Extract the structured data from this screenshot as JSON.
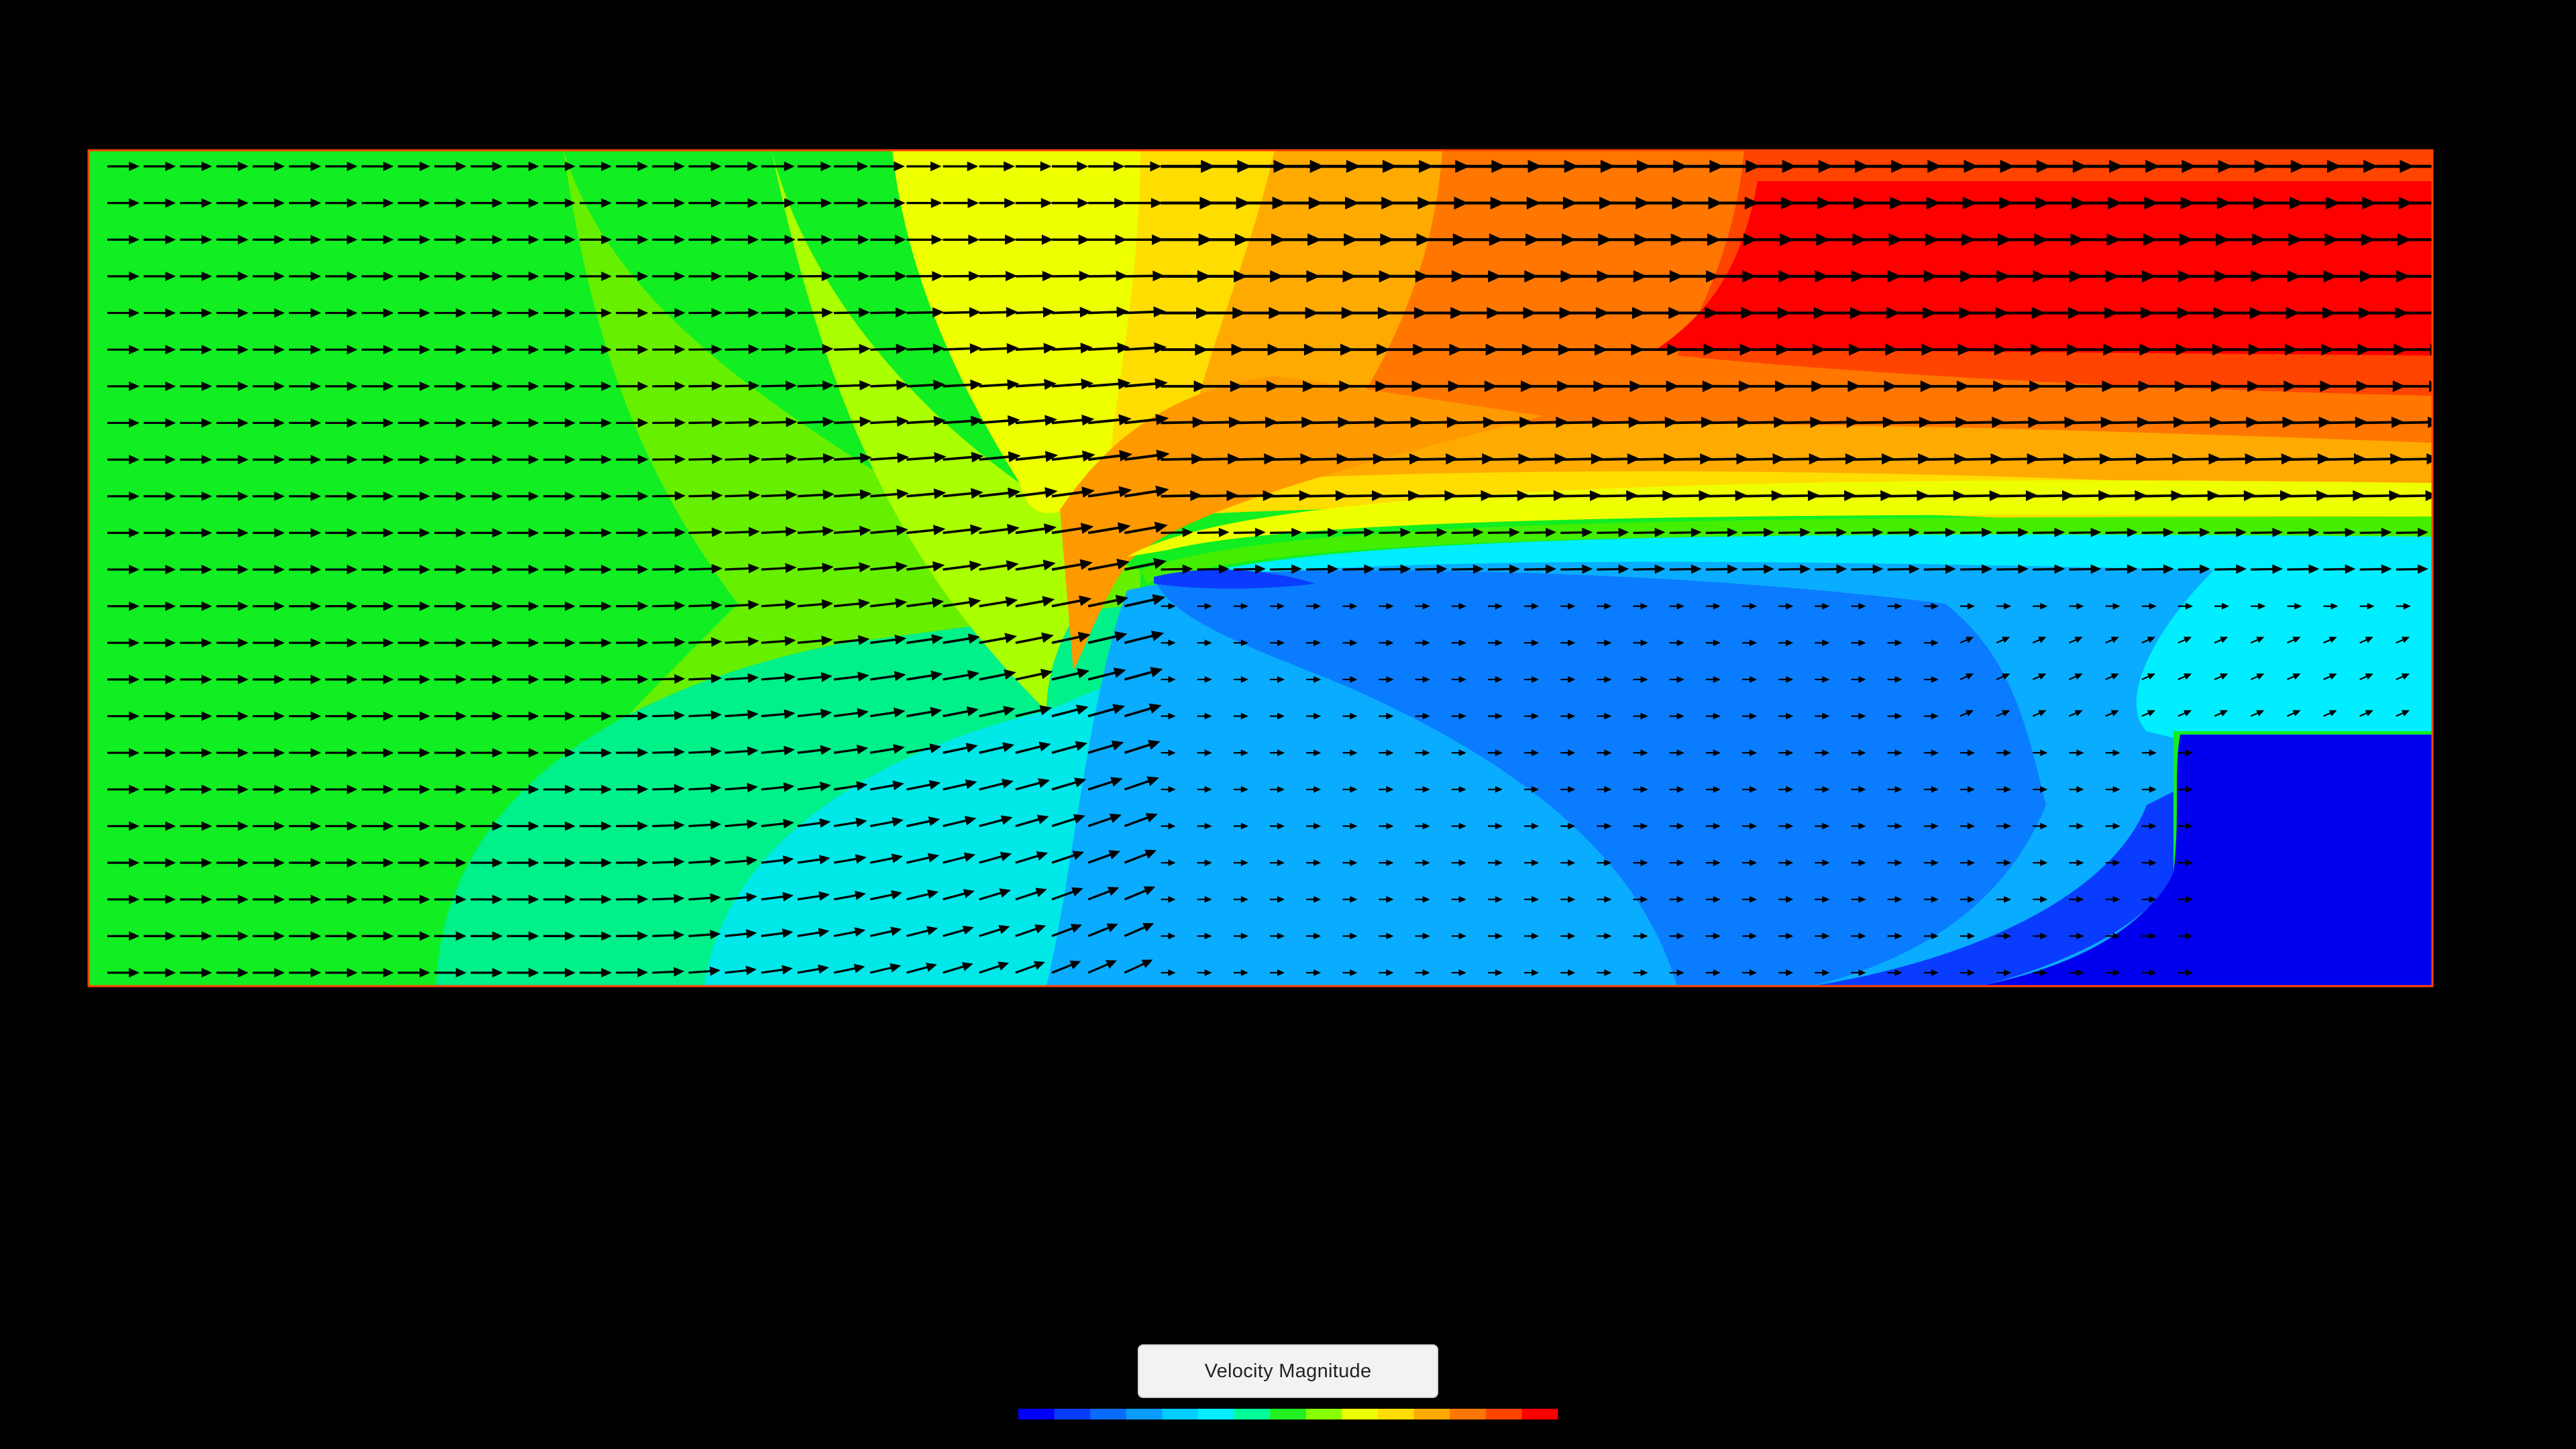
{
  "legend": {
    "label": "Velocity Magnitude",
    "colormap": [
      "#0000ff",
      "#0a3cff",
      "#0a6cff",
      "#0a9cff",
      "#00ccff",
      "#00eeff",
      "#00ff99",
      "#22ee22",
      "#88ff00",
      "#eeff00",
      "#ffdd00",
      "#ffaa00",
      "#ff7700",
      "#ff4400",
      "#ff0000"
    ]
  },
  "colors": {
    "background": "#000000",
    "domain_border": "#ff4400",
    "arrow": "#000000"
  }
}
